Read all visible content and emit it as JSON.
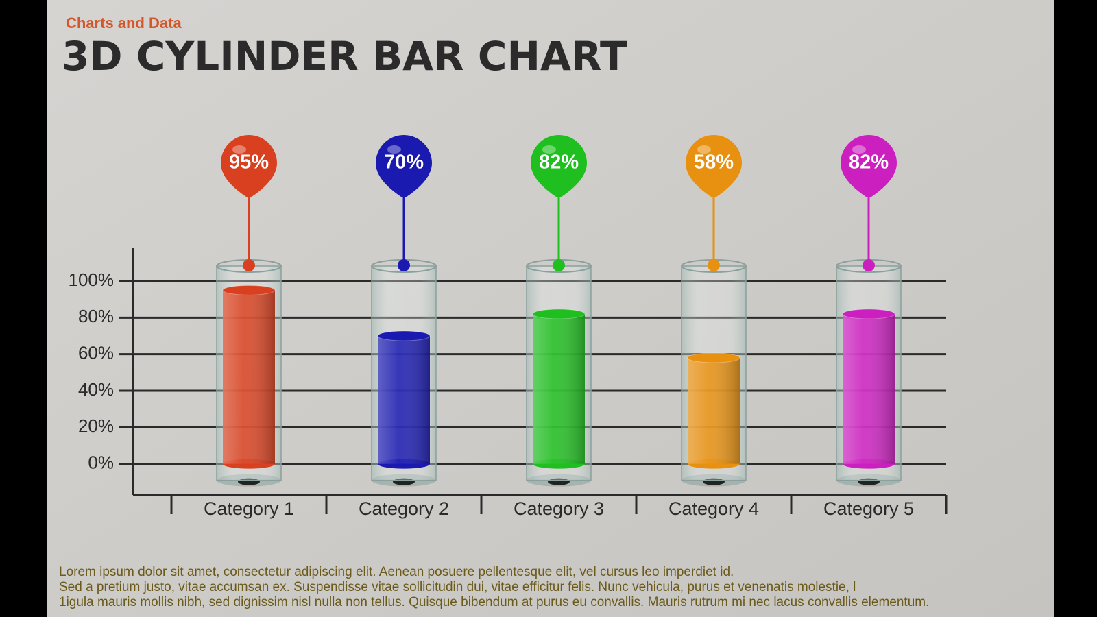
{
  "chart_data": {
    "type": "bar",
    "subtitle": "Charts and Data",
    "title": "3D CYLINDER BAR CHART",
    "categories": [
      "Category 1",
      "Category 2",
      "Category 3",
      "Category 4",
      "Category 5"
    ],
    "values": [
      95,
      70,
      82,
      58,
      82
    ],
    "value_labels": [
      "95%",
      "70%",
      "82%",
      "58%",
      "82%"
    ],
    "colors": [
      "#d8401f",
      "#1a1ab0",
      "#1fbf1f",
      "#e8900f",
      "#cc1fc0"
    ],
    "ylim": [
      -17,
      118
    ],
    "yticks": [
      {
        "value": 0,
        "label": "0%"
      },
      {
        "value": 20,
        "label": "20%"
      },
      {
        "value": 40,
        "label": "40%"
      },
      {
        "value": 60,
        "label": "60%"
      },
      {
        "value": 80,
        "label": "80%"
      },
      {
        "value": 100,
        "label": "100%"
      }
    ],
    "grid": true,
    "description": [
      "Lorem ipsum dolor sit amet, consectetur adipiscing elit. Aenean posuere pellentesque elit, vel cursus leo imperdiet id.",
      "Sed a pretium justo, vitae accumsan ex. Suspendisse vitae sollicitudin dui, vitae efficitur felis. Nunc vehicula, purus et venenatis molestie, l",
      "1igula mauris mollis nibh, sed dignissim nisl nulla non tellus. Quisque bibendum at purus eu convallis. Mauris rutrum mi nec lacus convallis elementum."
    ]
  }
}
